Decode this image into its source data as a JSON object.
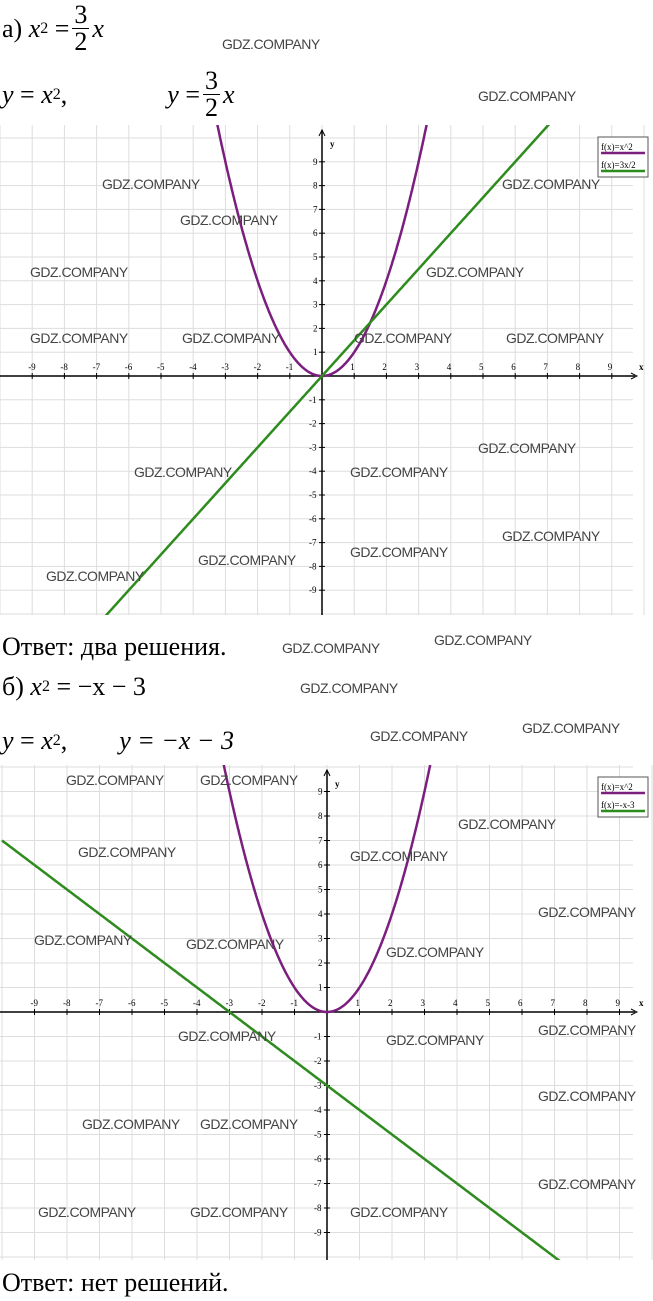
{
  "watermark": "GDZ.COMPANY",
  "part_a": {
    "label": "а)",
    "equation": {
      "lhs": "x",
      "exp": "2",
      "eq": "=",
      "num": "3",
      "den": "2",
      "rhs": "x"
    },
    "functions": {
      "f1_lhs": "y",
      "f1_eq": "=",
      "f1_rhs": "x",
      "f1_exp": "2",
      "sep": ",",
      "f2_lhs": "y",
      "f2_eq": "=",
      "f2_num": "3",
      "f2_den": "2",
      "f2_rhs": "x"
    },
    "answer": "Ответ: два решения.",
    "graph": {
      "axis_x": "x",
      "axis_y": "y",
      "legend": [
        "f(x)=x^2",
        "f(x)=3x/2"
      ],
      "colors": {
        "parabola": "#7b1f7e",
        "line": "#2e8b1e"
      }
    }
  },
  "part_b": {
    "label": "б)",
    "equation": {
      "lhs": "x",
      "exp": "2",
      "rhs": "= −x − 3"
    },
    "functions": {
      "f1_lhs": "y",
      "f1_eq": "=",
      "f1_rhs": "x",
      "f1_exp": "2",
      "sep": ",",
      "f2": "y = −x − 3"
    },
    "answer": "Ответ: нет решений.",
    "graph": {
      "axis_x": "x",
      "axis_y": "y",
      "legend": [
        "f(x)=x^2",
        "f(x)=-x-3"
      ],
      "colors": {
        "parabola": "#7b1f7e",
        "line": "#2e8b1e"
      }
    }
  },
  "chart_data": [
    {
      "type": "line",
      "xlim": [
        -10,
        10
      ],
      "ylim": [
        -10,
        10
      ],
      "grid": true,
      "legend_placement": "top-right",
      "series": [
        {
          "name": "f(x)=x^2",
          "formula": "x^2"
        },
        {
          "name": "f(x)=3x/2",
          "formula": "1.5x"
        }
      ],
      "ticks": [
        -9,
        -8,
        -7,
        -6,
        -5,
        -4,
        -3,
        -2,
        -1,
        1,
        2,
        3,
        4,
        5,
        6,
        7,
        8,
        9
      ]
    },
    {
      "type": "line",
      "xlim": [
        -10,
        10
      ],
      "ylim": [
        -10,
        10
      ],
      "grid": true,
      "legend_placement": "top-right",
      "series": [
        {
          "name": "f(x)=x^2",
          "formula": "x^2"
        },
        {
          "name": "f(x)=-x-3",
          "formula": "-x-3"
        }
      ],
      "ticks": [
        -9,
        -8,
        -7,
        -6,
        -5,
        -4,
        -3,
        -2,
        -1,
        1,
        2,
        3,
        4,
        5,
        6,
        7,
        8,
        9
      ]
    }
  ]
}
